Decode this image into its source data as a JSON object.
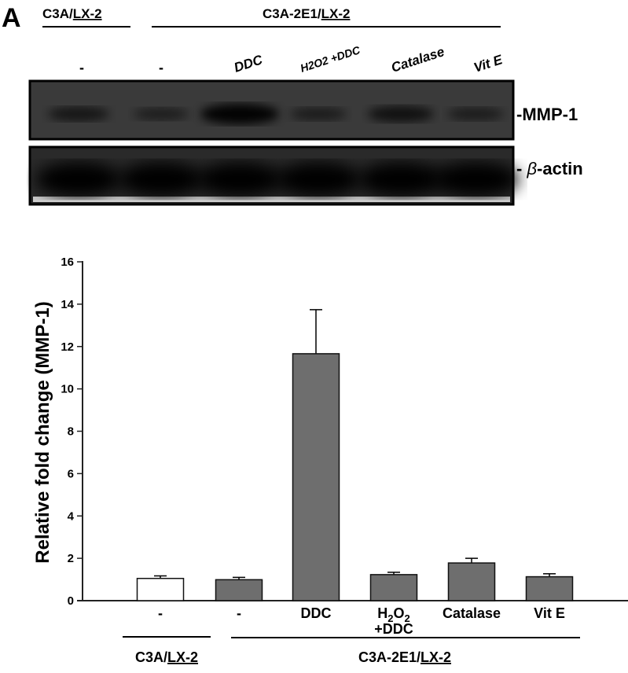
{
  "panel_label": "A",
  "blot": {
    "group_left": {
      "prefix": "C3A/",
      "underlined": "LX-2"
    },
    "group_right": {
      "prefix": "C3A-2E1/",
      "underlined": "LX-2"
    },
    "lanes": [
      "-",
      "-",
      "DDC",
      "H2O2 +DDC",
      "Catalase",
      "Vit E"
    ],
    "lane_labels": [
      {
        "main": "-"
      },
      {
        "main": "-"
      },
      {
        "main": "DDC"
      },
      {
        "main": "H",
        "sub1": "2",
        "mid": "O",
        "sub2": "2",
        "line2": "+DDC"
      },
      {
        "main": "Catalase"
      },
      {
        "main": "Vit E"
      }
    ],
    "band_labels": {
      "mmp1": "-MMP-1",
      "actin_dash": "- ",
      "actin_beta": "β",
      "actin_rest": "-actin"
    },
    "mmp1_intensity": [
      0.45,
      0.25,
      1.0,
      0.3,
      0.6,
      0.3
    ]
  },
  "chart_data": {
    "type": "bar",
    "categories": [
      "-",
      "-",
      "DDC",
      "H2O2 +DDC",
      "Catalase",
      "Vit E"
    ],
    "values": [
      1.05,
      0.99,
      11.66,
      1.23,
      1.78,
      1.13
    ],
    "error_upper": [
      1.17,
      1.1,
      13.74,
      1.34,
      2.0,
      1.27
    ],
    "bar_colors": [
      "#ffffff",
      "#6e6e6e",
      "#6e6e6e",
      "#6e6e6e",
      "#6e6e6e",
      "#6e6e6e"
    ],
    "ylabel": "Relative fold change (MMP-1)",
    "ylim": [
      0,
      16
    ],
    "yticks": [
      "0",
      "2",
      "4",
      "6",
      "8",
      "10",
      "12",
      "14",
      "16"
    ],
    "grid": false,
    "group_left": {
      "prefix": "C3A/",
      "underlined": "LX-2"
    },
    "group_right": {
      "prefix": "C3A-2E1/",
      "underlined": "LX-2"
    }
  }
}
